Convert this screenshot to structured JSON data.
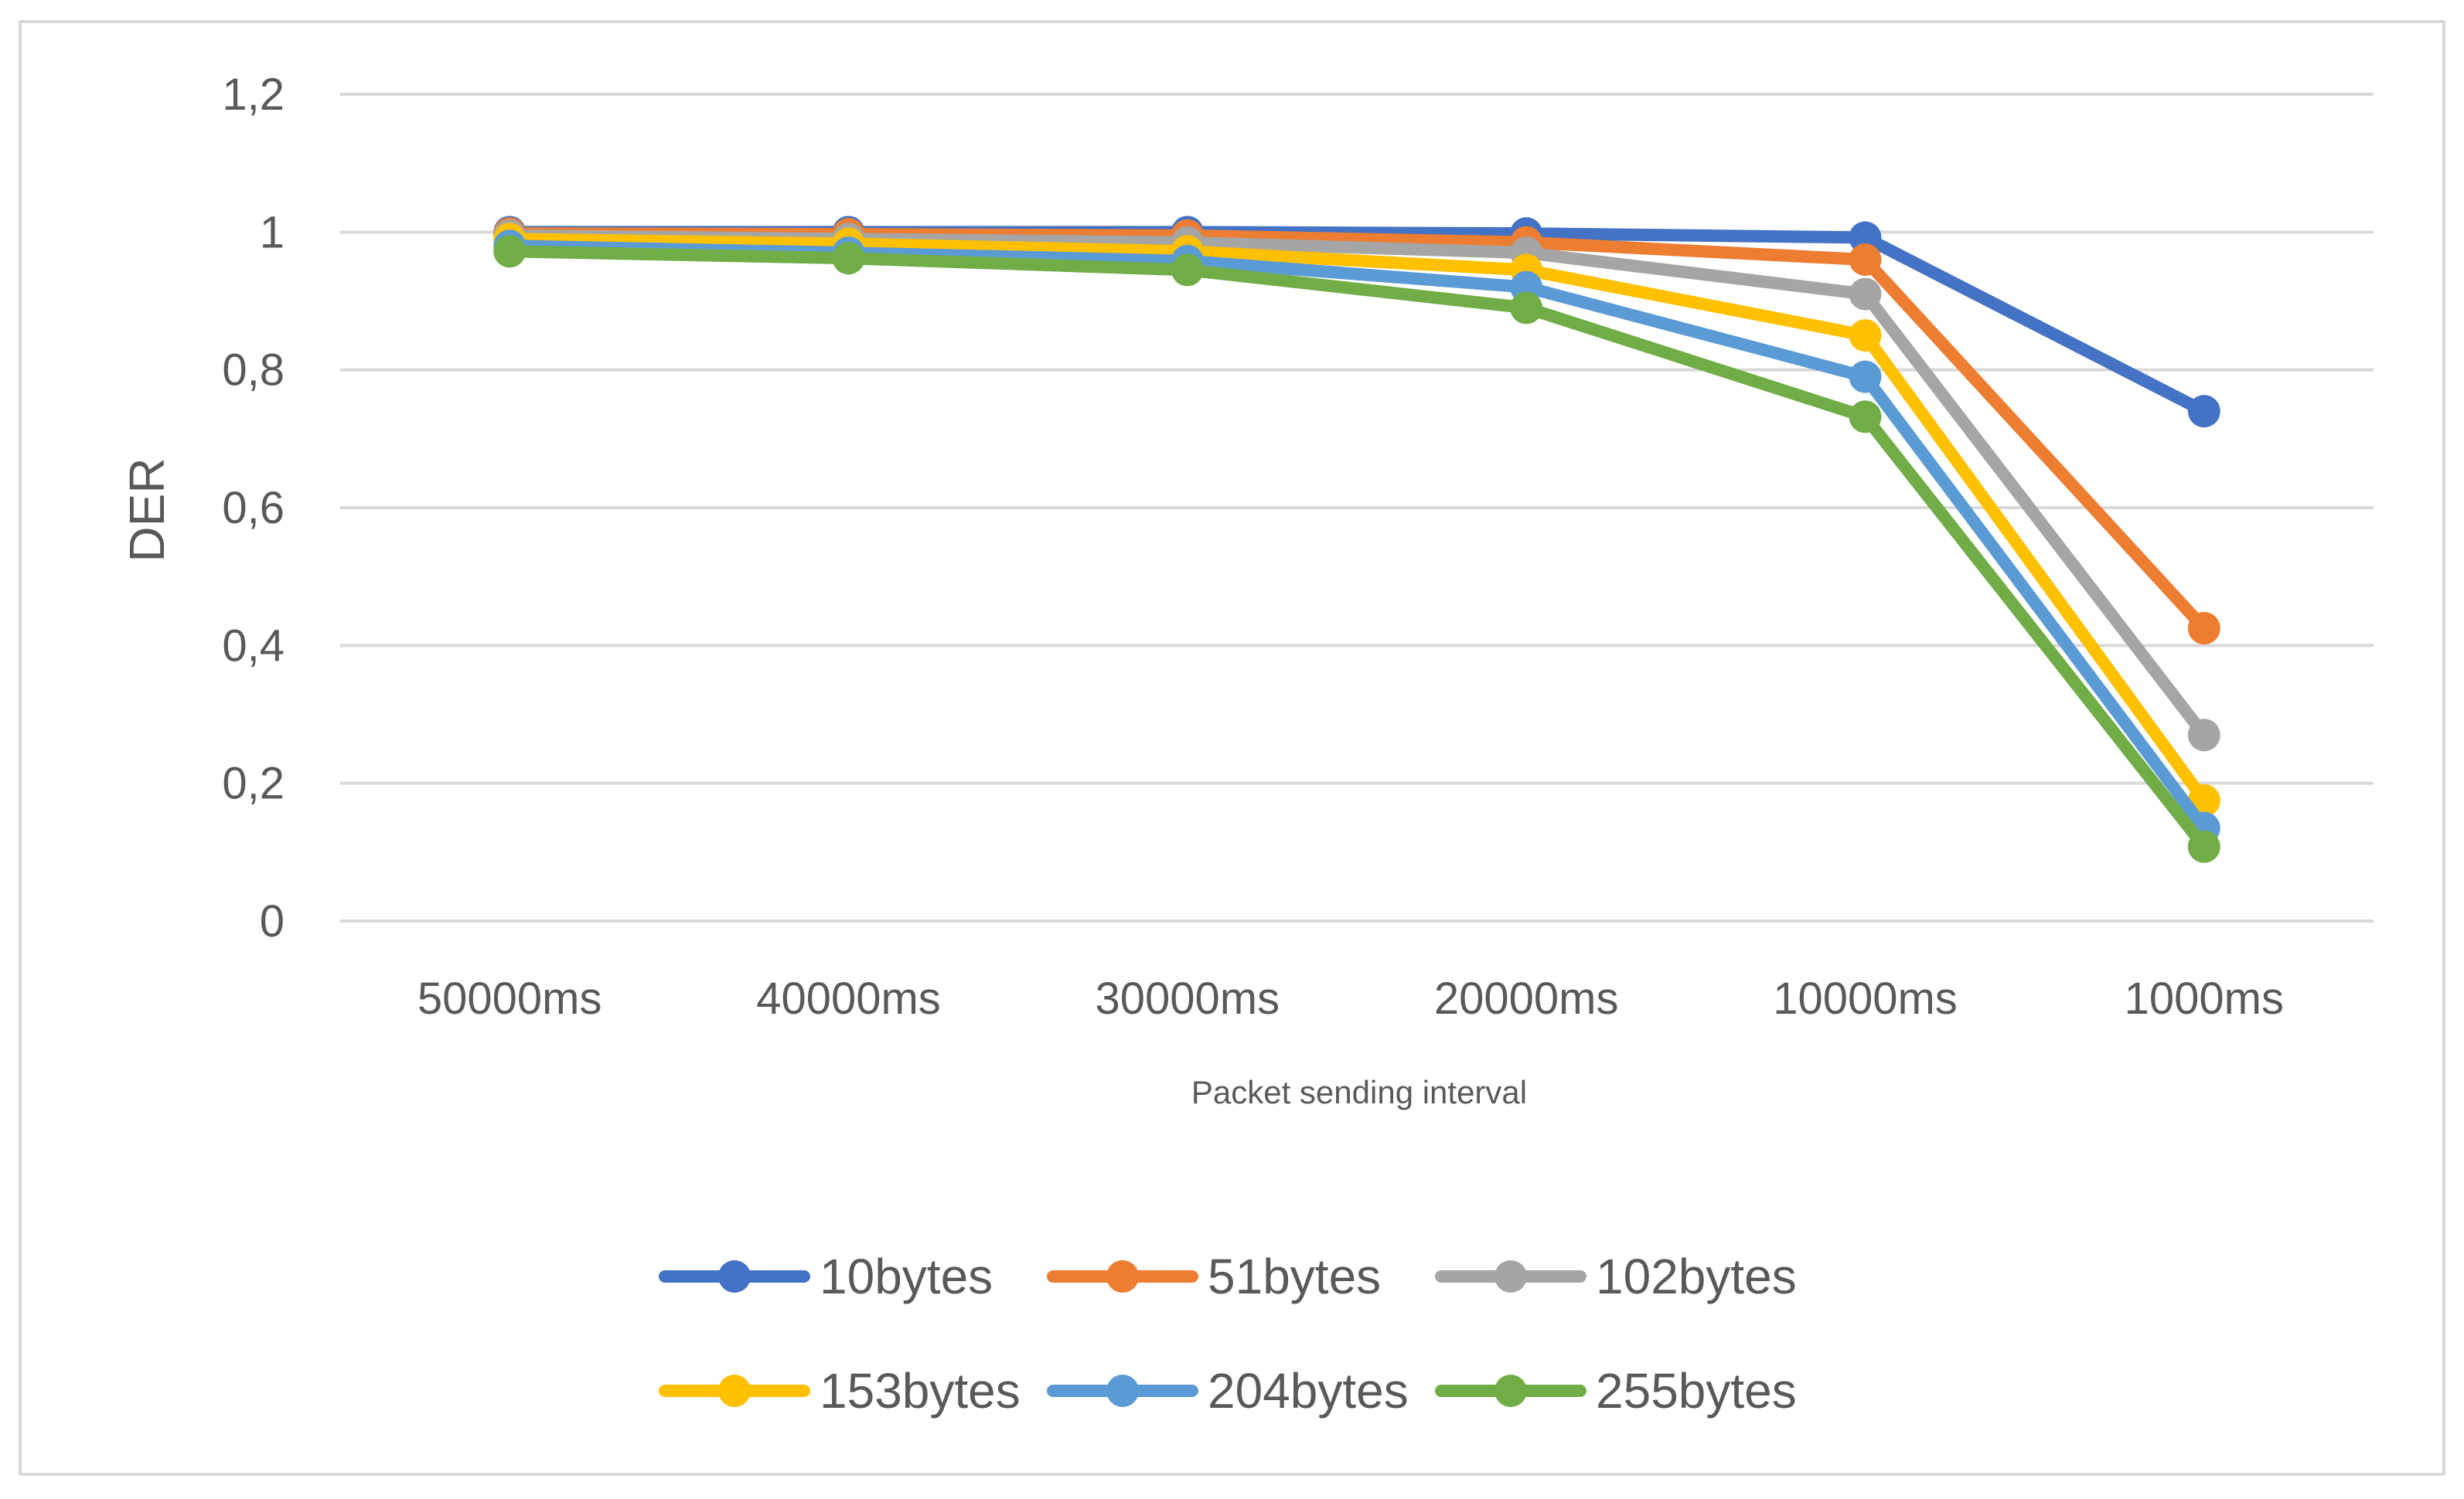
{
  "chart_data": {
    "type": "line",
    "title": "",
    "xlabel": "Packet sending interval",
    "ylabel": "DER",
    "categories": [
      "50000ms",
      "40000ms",
      "30000ms",
      "20000ms",
      "10000ms",
      "1000ms"
    ],
    "ylim": [
      0,
      1.2
    ],
    "yticks": [
      "0",
      "0,2",
      "0,4",
      "0,6",
      "0,8",
      "1",
      "1,2"
    ],
    "grid": true,
    "legend_position": "bottom",
    "series": [
      {
        "name": "10bytes",
        "color": "#4472C4",
        "values": [
          1.0,
          1.0,
          1.0,
          0.998,
          0.992,
          0.74
        ]
      },
      {
        "name": "51bytes",
        "color": "#ED7D31",
        "values": [
          0.998,
          0.997,
          0.995,
          0.985,
          0.96,
          0.425
        ]
      },
      {
        "name": "102bytes",
        "color": "#A5A5A5",
        "values": [
          0.995,
          0.99,
          0.985,
          0.97,
          0.91,
          0.27
        ]
      },
      {
        "name": "153bytes",
        "color": "#FFC000",
        "values": [
          0.99,
          0.983,
          0.972,
          0.945,
          0.85,
          0.175
        ]
      },
      {
        "name": "204bytes",
        "color": "#5B9BD5",
        "values": [
          0.98,
          0.97,
          0.958,
          0.92,
          0.79,
          0.135
        ]
      },
      {
        "name": "255bytes",
        "color": "#70AD47",
        "values": [
          0.972,
          0.962,
          0.945,
          0.89,
          0.732,
          0.108
        ]
      }
    ]
  }
}
